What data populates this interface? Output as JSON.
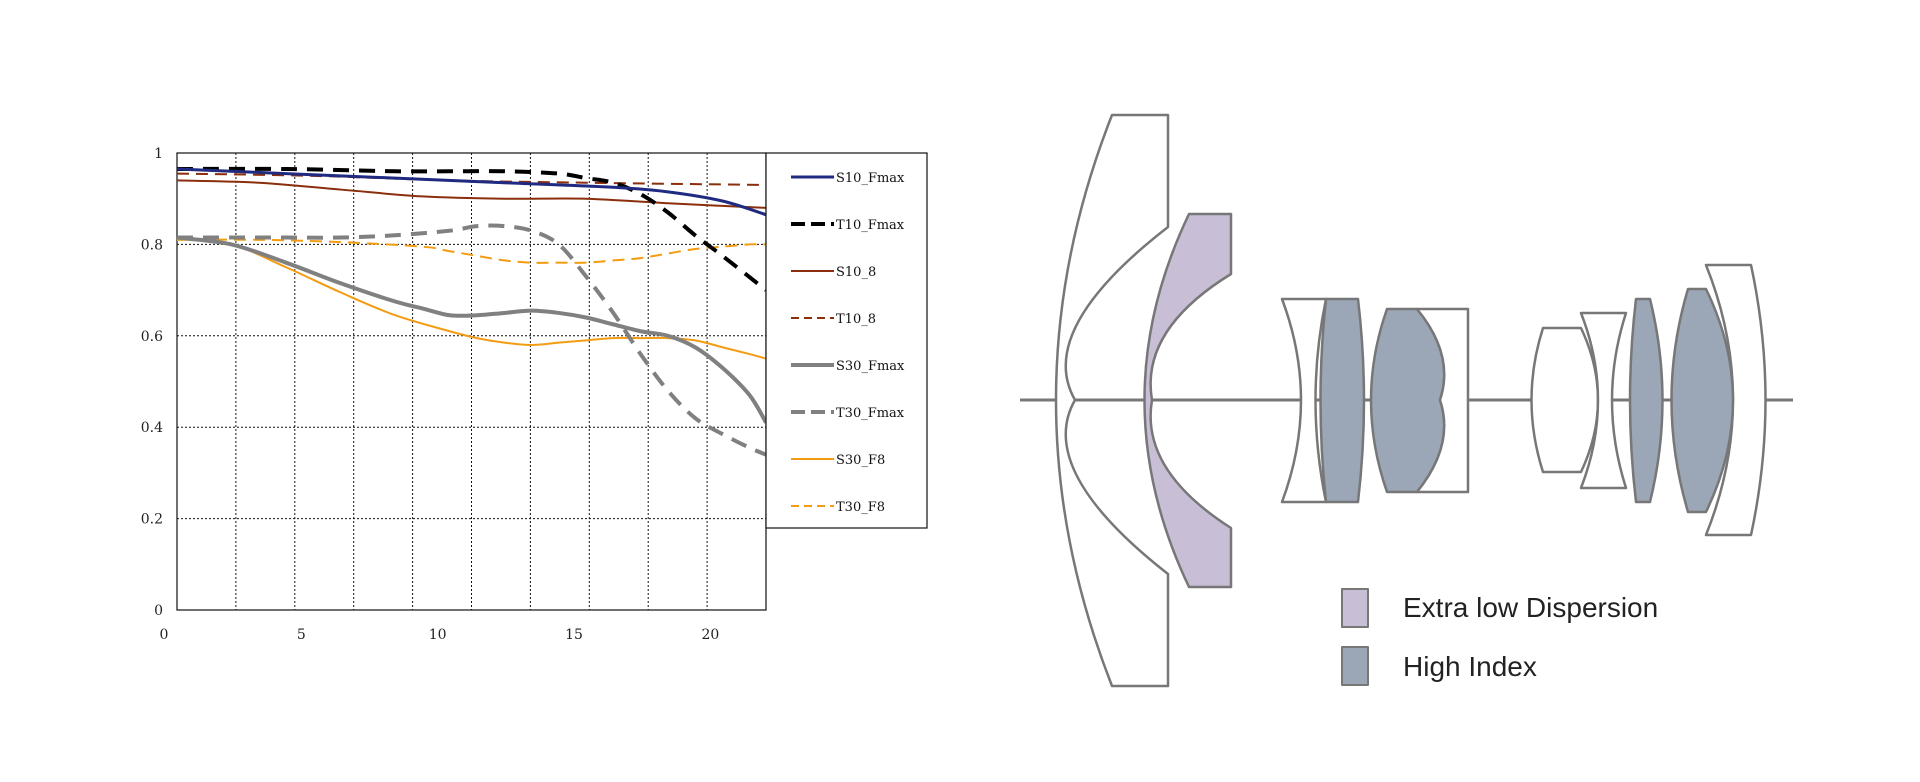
{
  "chart_data": {
    "type": "line",
    "title": "",
    "xlabel": "",
    "ylabel": "",
    "xlim": [
      0,
      21.6
    ],
    "ylim": [
      0,
      1
    ],
    "x_ticks": [
      "0",
      "5",
      "10",
      "15",
      "20"
    ],
    "y_ticks": [
      "0",
      "0.2",
      "0.4",
      "0.6",
      "0.8",
      "1"
    ],
    "grid": "dotted",
    "legend_position": "right",
    "series": [
      {
        "name": "S10_Fmax",
        "color": "#1f2a80",
        "dash": "solid",
        "width": 3,
        "x": [
          0,
          4,
          8,
          12,
          16,
          18,
          20,
          21.6
        ],
        "y": [
          0.965,
          0.955,
          0.945,
          0.935,
          0.925,
          0.915,
          0.895,
          0.865
        ]
      },
      {
        "name": "T10_Fmax",
        "color": "#000000",
        "dash": "dash",
        "width": 4,
        "x": [
          0,
          4,
          8,
          10,
          12,
          14,
          15,
          16,
          17,
          18,
          19,
          20,
          21.6
        ],
        "y": [
          0.965,
          0.965,
          0.96,
          0.96,
          0.96,
          0.955,
          0.945,
          0.935,
          0.91,
          0.87,
          0.82,
          0.775,
          0.7
        ]
      },
      {
        "name": "S10_8",
        "color": "#8b2e0c",
        "dash": "solid",
        "width": 2,
        "x": [
          0,
          3,
          6,
          9,
          12,
          15,
          18,
          21.6
        ],
        "y": [
          0.94,
          0.935,
          0.92,
          0.905,
          0.9,
          0.9,
          0.89,
          0.88
        ]
      },
      {
        "name": "T10_8",
        "color": "#8b2e0c",
        "dash": "dash",
        "width": 2,
        "x": [
          0,
          5,
          10,
          15,
          21.6
        ],
        "y": [
          0.955,
          0.95,
          0.94,
          0.935,
          0.93
        ]
      },
      {
        "name": "S30_Fmax",
        "color": "#808080",
        "dash": "solid",
        "width": 4,
        "x": [
          0,
          2,
          4,
          6,
          8,
          9,
          10,
          11,
          12,
          13,
          14,
          15,
          16,
          17,
          18,
          19,
          20,
          21,
          21.6
        ],
        "y": [
          0.815,
          0.8,
          0.76,
          0.715,
          0.675,
          0.66,
          0.645,
          0.645,
          0.65,
          0.655,
          0.65,
          0.64,
          0.625,
          0.61,
          0.6,
          0.575,
          0.53,
          0.47,
          0.41
        ]
      },
      {
        "name": "T30_Fmax",
        "color": "#808080",
        "dash": "dash",
        "width": 4,
        "x": [
          0,
          2,
          4,
          6,
          8,
          10,
          11,
          12,
          13,
          14,
          15,
          16,
          17,
          18,
          19,
          20,
          21,
          21.6
        ],
        "y": [
          0.815,
          0.815,
          0.815,
          0.815,
          0.82,
          0.83,
          0.84,
          0.84,
          0.83,
          0.8,
          0.73,
          0.65,
          0.56,
          0.48,
          0.42,
          0.385,
          0.355,
          0.34
        ]
      },
      {
        "name": "S30_F8",
        "color": "#f39c12",
        "dash": "solid",
        "width": 2,
        "x": [
          0,
          2,
          4,
          6,
          8,
          10,
          11,
          12,
          13,
          14,
          15,
          16,
          17,
          18,
          19,
          20,
          21,
          21.6
        ],
        "y": [
          0.815,
          0.8,
          0.75,
          0.695,
          0.645,
          0.61,
          0.595,
          0.585,
          0.58,
          0.585,
          0.59,
          0.595,
          0.595,
          0.595,
          0.59,
          0.575,
          0.56,
          0.55
        ]
      },
      {
        "name": "T30_F8",
        "color": "#f39c12",
        "dash": "dash",
        "width": 2,
        "x": [
          0,
          3,
          6,
          9,
          10,
          11,
          12,
          13,
          14,
          15,
          16,
          17,
          18,
          19,
          20,
          21,
          21.6
        ],
        "y": [
          0.81,
          0.81,
          0.805,
          0.795,
          0.785,
          0.775,
          0.765,
          0.76,
          0.76,
          0.76,
          0.765,
          0.77,
          0.78,
          0.79,
          0.795,
          0.8,
          0.8
        ]
      }
    ]
  },
  "lens_diagram": {
    "colors": {
      "extra_low_dispersion": "#c8bfd6",
      "high_index": "#9ba6b7",
      "plain_glass": "#ffffff",
      "outline": "#777777"
    },
    "key": [
      {
        "label": "Extra low Dispersion",
        "color": "#c8bfd6"
      },
      {
        "label": "High Index",
        "color": "#9ba6b7"
      }
    ]
  }
}
